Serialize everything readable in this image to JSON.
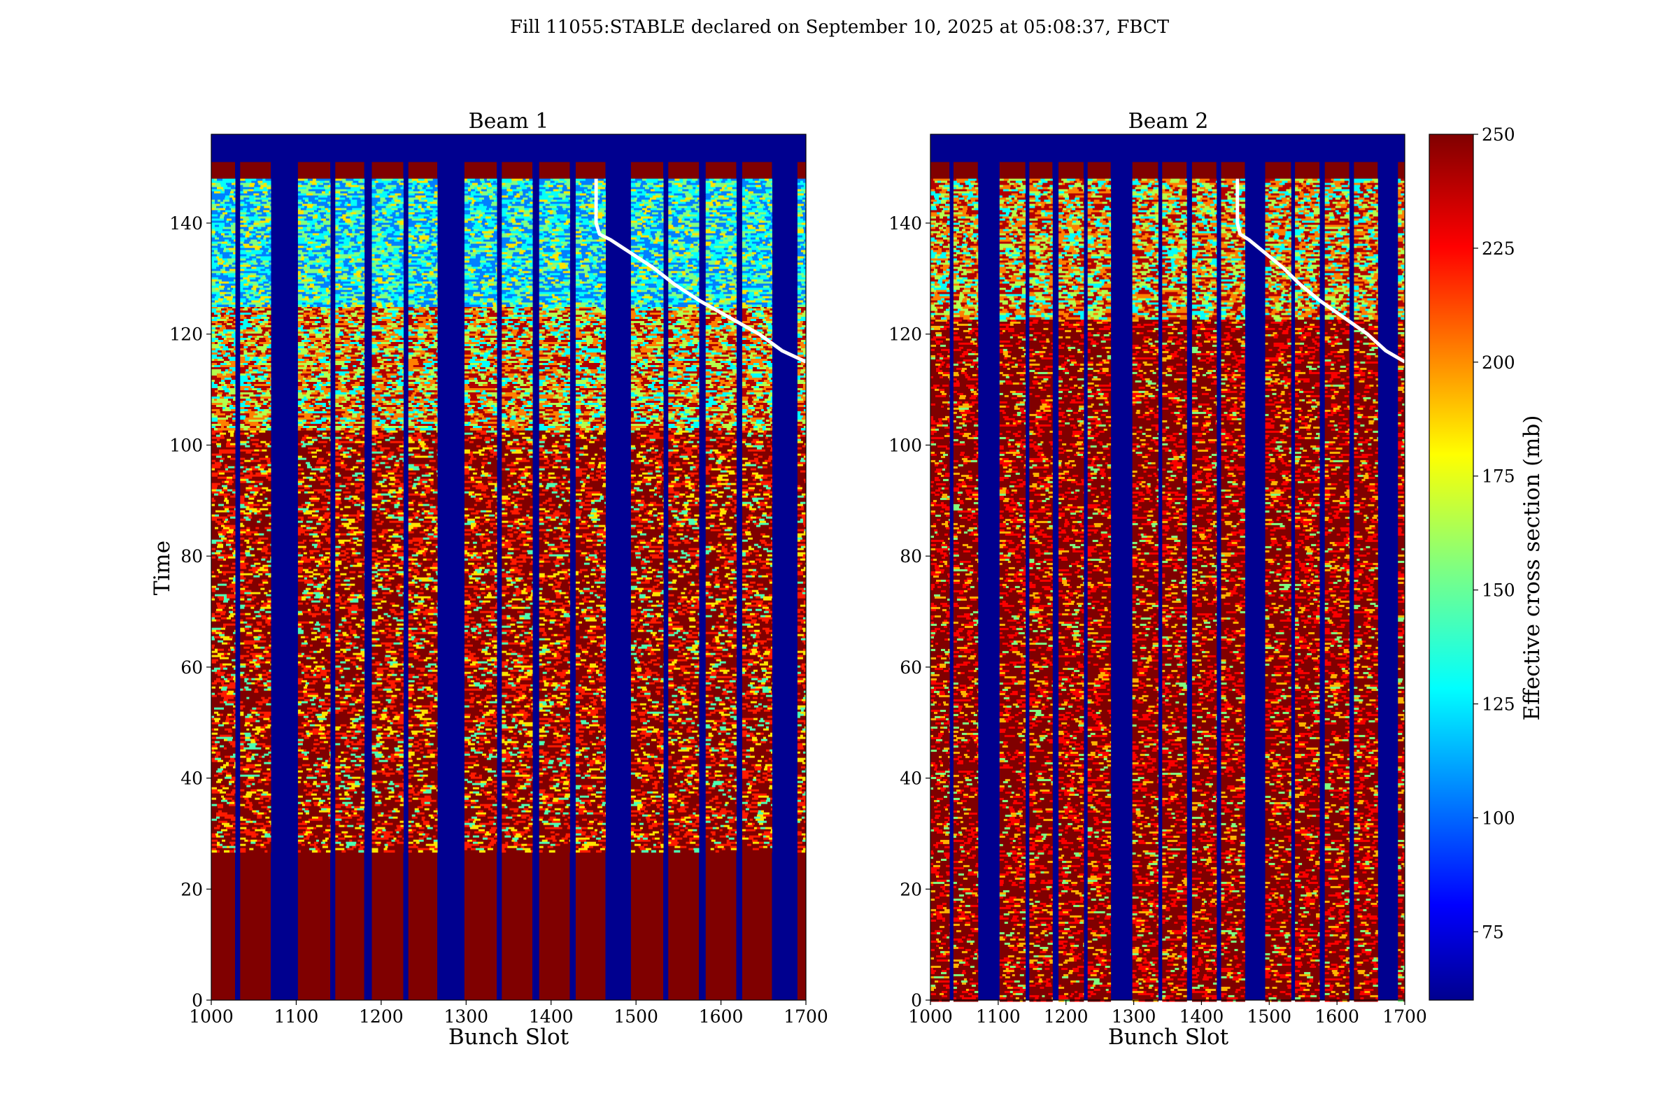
{
  "figure": {
    "suptitle": "Fill 11055:STABLE declared on September 10, 2025 at 05:08:37, FBCT"
  },
  "colors": {
    "background_low": "#00008f",
    "low_mid": "#0090ff",
    "mid": "#40ffc0",
    "high_mid": "#ffd400",
    "high": "#ff2000",
    "top": "#800000",
    "overlay_line": "#ffffff"
  },
  "chart_data": [
    {
      "type": "heatmap",
      "title": "Beam 1",
      "xlabel": "Bunch Slot",
      "ylabel": "Time",
      "xlim": [
        1000,
        1700
      ],
      "ylim": [
        0,
        156
      ],
      "xticks": [
        "1000",
        "1100",
        "1200",
        "1300",
        "1400",
        "1500",
        "1600",
        "1700"
      ],
      "yticks": [
        "0",
        "20",
        "40",
        "60",
        "80",
        "100",
        "120",
        "140"
      ],
      "color_scale": "jet",
      "value_range": [
        60,
        250
      ],
      "filled_bunch_trains": [
        [
          1000,
          1028
        ],
        [
          1034,
          1070
        ],
        [
          1102,
          1140
        ],
        [
          1146,
          1180
        ],
        [
          1189,
          1226
        ],
        [
          1232,
          1266
        ],
        [
          1298,
          1336
        ],
        [
          1342,
          1378
        ],
        [
          1386,
          1422
        ],
        [
          1429,
          1464
        ],
        [
          1494,
          1532
        ],
        [
          1538,
          1574
        ],
        [
          1582,
          1618
        ],
        [
          1625,
          1660
        ],
        [
          1690,
          1700
        ]
      ],
      "regimes": [
        {
          "time_from": 0,
          "time_to": 27,
          "level": "high"
        },
        {
          "time_from": 27,
          "time_to": 103,
          "level": "high-with-bands"
        },
        {
          "time_from": 103,
          "time_to": 125,
          "level": "mixed"
        },
        {
          "time_from": 125,
          "time_to": 148,
          "level": "low"
        },
        {
          "time_from": 148,
          "time_to": 151,
          "level": "saturated"
        }
      ],
      "overlay_line": {
        "x": [
          1453,
          1453,
          1457,
          1470,
          1490,
          1520,
          1545,
          1575,
          1610,
          1645,
          1672,
          1700
        ],
        "y": [
          148,
          140,
          138,
          137,
          135,
          132,
          129,
          126,
          123,
          120,
          117,
          115
        ]
      }
    },
    {
      "type": "heatmap",
      "title": "Beam 2",
      "xlabel": "Bunch Slot",
      "ylabel": "",
      "xlim": [
        1000,
        1700
      ],
      "ylim": [
        0,
        156
      ],
      "xticks": [
        "1000",
        "1100",
        "1200",
        "1300",
        "1400",
        "1500",
        "1600",
        "1700"
      ],
      "yticks": [
        "0",
        "20",
        "40",
        "60",
        "80",
        "100",
        "120",
        "140"
      ],
      "color_scale": "jet",
      "value_range": [
        60,
        250
      ],
      "filled_bunch_trains": [
        [
          1000,
          1028
        ],
        [
          1034,
          1070
        ],
        [
          1102,
          1140
        ],
        [
          1146,
          1180
        ],
        [
          1189,
          1226
        ],
        [
          1232,
          1266
        ],
        [
          1298,
          1336
        ],
        [
          1342,
          1378
        ],
        [
          1386,
          1422
        ],
        [
          1429,
          1464
        ],
        [
          1494,
          1532
        ],
        [
          1538,
          1574
        ],
        [
          1582,
          1618
        ],
        [
          1625,
          1660
        ],
        [
          1690,
          1700
        ]
      ],
      "regimes": [
        {
          "time_from": 0,
          "time_to": 123,
          "level": "high-speckled"
        },
        {
          "time_from": 123,
          "time_to": 148,
          "level": "mixed"
        },
        {
          "time_from": 148,
          "time_to": 151,
          "level": "saturated"
        }
      ],
      "overlay_line": {
        "x": [
          1453,
          1453,
          1457,
          1470,
          1490,
          1520,
          1545,
          1575,
          1610,
          1645,
          1672,
          1700
        ],
        "y": [
          148,
          140,
          138,
          137,
          135,
          132,
          129,
          126,
          123,
          120,
          117,
          115
        ]
      }
    }
  ],
  "colorbar": {
    "label": "Effective cross section (mb)",
    "range": [
      60,
      250
    ],
    "ticks": [
      "75",
      "100",
      "125",
      "150",
      "175",
      "200",
      "225",
      "250"
    ]
  }
}
